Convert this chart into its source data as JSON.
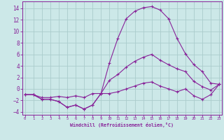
{
  "xlabel": "Windchill (Refroidissement éolien,°C)",
  "background_color": "#cce8e8",
  "grid_color": "#aacccc",
  "line_color": "#882299",
  "x": [
    0,
    1,
    2,
    3,
    4,
    5,
    6,
    7,
    8,
    9,
    10,
    11,
    12,
    13,
    14,
    15,
    16,
    17,
    18,
    19,
    20,
    21,
    22,
    23
  ],
  "line1": [
    -1.0,
    -1.0,
    -1.8,
    -1.8,
    -2.2,
    -3.2,
    -2.8,
    -3.5,
    -2.8,
    -0.8,
    4.5,
    8.8,
    12.2,
    13.5,
    14.1,
    14.3,
    13.7,
    12.2,
    8.8,
    6.1,
    4.2,
    3.0,
    1.0,
    0.8
  ],
  "line2": [
    -1.0,
    -1.0,
    -1.5,
    -1.5,
    -1.3,
    -1.5,
    -1.2,
    -1.5,
    -0.8,
    -0.8,
    1.5,
    2.5,
    3.8,
    4.8,
    5.5,
    6.0,
    5.0,
    4.2,
    3.5,
    3.0,
    1.3,
    0.4,
    -0.2,
    0.8
  ],
  "line3": [
    -1.0,
    -1.0,
    -1.8,
    -1.8,
    -2.2,
    -3.2,
    -2.8,
    -3.5,
    -2.8,
    -0.8,
    -0.8,
    -0.5,
    0.0,
    0.5,
    1.0,
    1.2,
    0.5,
    0.0,
    -0.5,
    0.0,
    -1.2,
    -1.8,
    -1.0,
    0.8
  ],
  "ylim": [
    -4.5,
    15.2
  ],
  "yticks": [
    -4,
    -2,
    0,
    2,
    4,
    6,
    8,
    10,
    12,
    14
  ],
  "xlim": [
    -0.3,
    23.3
  ],
  "xticks": [
    0,
    1,
    2,
    3,
    4,
    5,
    6,
    7,
    8,
    9,
    10,
    11,
    12,
    13,
    14,
    15,
    16,
    17,
    18,
    19,
    20,
    21,
    22,
    23
  ]
}
